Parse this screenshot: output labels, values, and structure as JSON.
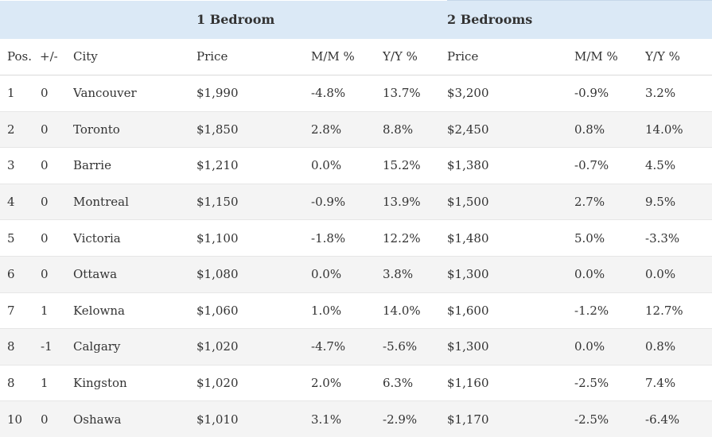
{
  "table": {
    "group_headers": {
      "one_bedroom": "1 Bedroom",
      "two_bedrooms": "2 Bedrooms"
    },
    "columns": {
      "pos": "Pos.",
      "change": "+/-",
      "city": "City",
      "price_1": "Price",
      "mm_1": "M/M %",
      "yy_1": "Y/Y %",
      "price_2": "Price",
      "mm_2": "M/M %",
      "yy_2": "Y/Y %"
    },
    "rows": [
      {
        "pos": "1",
        "change": "0",
        "city": "Vancouver",
        "price_1": "$1,990",
        "mm_1": "-4.8%",
        "yy_1": "13.7%",
        "price_2": "$3,200",
        "mm_2": "-0.9%",
        "yy_2": "3.2%"
      },
      {
        "pos": "2",
        "change": "0",
        "city": "Toronto",
        "price_1": "$1,850",
        "mm_1": "2.8%",
        "yy_1": "8.8%",
        "price_2": "$2,450",
        "mm_2": "0.8%",
        "yy_2": "14.0%"
      },
      {
        "pos": "3",
        "change": "0",
        "city": "Barrie",
        "price_1": "$1,210",
        "mm_1": "0.0%",
        "yy_1": "15.2%",
        "price_2": "$1,380",
        "mm_2": "-0.7%",
        "yy_2": "4.5%"
      },
      {
        "pos": "4",
        "change": "0",
        "city": "Montreal",
        "price_1": "$1,150",
        "mm_1": "-0.9%",
        "yy_1": "13.9%",
        "price_2": "$1,500",
        "mm_2": "2.7%",
        "yy_2": "9.5%"
      },
      {
        "pos": "5",
        "change": "0",
        "city": "Victoria",
        "price_1": "$1,100",
        "mm_1": "-1.8%",
        "yy_1": "12.2%",
        "price_2": "$1,480",
        "mm_2": "5.0%",
        "yy_2": "-3.3%"
      },
      {
        "pos": "6",
        "change": "0",
        "city": "Ottawa",
        "price_1": "$1,080",
        "mm_1": "0.0%",
        "yy_1": "3.8%",
        "price_2": "$1,300",
        "mm_2": "0.0%",
        "yy_2": "0.0%"
      },
      {
        "pos": "7",
        "change": "1",
        "city": "Kelowna",
        "price_1": "$1,060",
        "mm_1": "1.0%",
        "yy_1": "14.0%",
        "price_2": "$1,600",
        "mm_2": "-1.2%",
        "yy_2": "12.7%"
      },
      {
        "pos": "8",
        "change": "-1",
        "city": "Calgary",
        "price_1": "$1,020",
        "mm_1": "-4.7%",
        "yy_1": "-5.6%",
        "price_2": "$1,300",
        "mm_2": "0.0%",
        "yy_2": "0.8%"
      },
      {
        "pos": "8",
        "change": "1",
        "city": "Kingston",
        "price_1": "$1,020",
        "mm_1": "2.0%",
        "yy_1": "6.3%",
        "price_2": "$1,160",
        "mm_2": "-2.5%",
        "yy_2": "7.4%"
      },
      {
        "pos": "10",
        "change": "0",
        "city": "Oshawa",
        "price_1": "$1,010",
        "mm_1": "3.1%",
        "yy_1": "-2.9%",
        "price_2": "$1,170",
        "mm_2": "-2.5%",
        "yy_2": "-6.4%"
      }
    ]
  },
  "colors": {
    "header_background": "#dbe9f6",
    "stripe_background": "#f4f4f4",
    "text": "#333333"
  }
}
